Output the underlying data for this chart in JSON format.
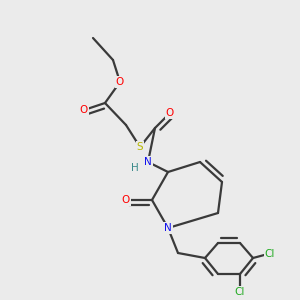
{
  "background_color": "#ebebeb",
  "bond_color": "#3a3a3a",
  "bond_width": 1.6,
  "atom_colors": {
    "O": "#ff0000",
    "S": "#b8b800",
    "N_blue": "#1010ee",
    "H": "#3a8a8a",
    "Cl": "#22aa22",
    "C": "#3a3a3a"
  },
  "font_size": 7.5
}
